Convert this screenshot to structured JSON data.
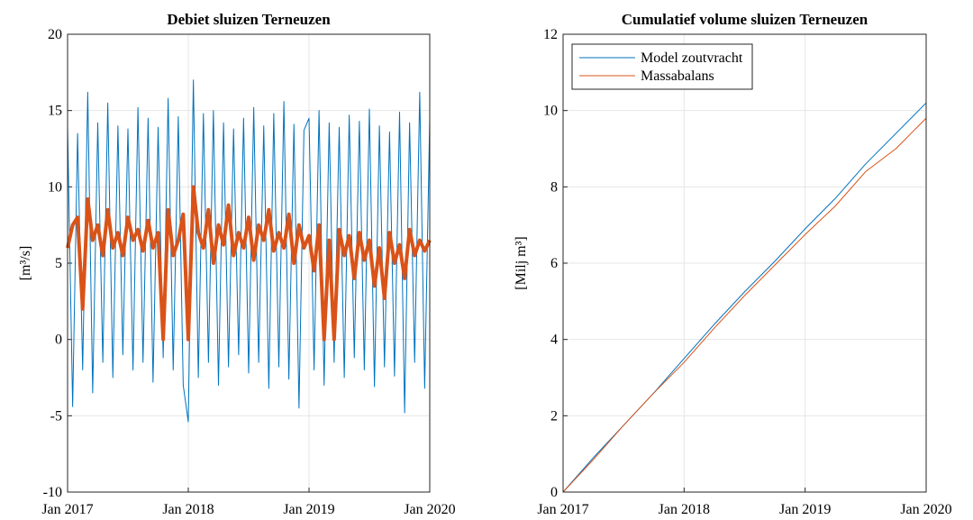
{
  "chart_data": [
    {
      "type": "line",
      "title": "Debiet sluizen Terneuzen",
      "ylabel": "[m³/s]",
      "xlim": [
        2017,
        2020
      ],
      "xticks": [
        {
          "value": 2017,
          "label": "Jan 2017"
        },
        {
          "value": 2018,
          "label": "Jan 2018"
        },
        {
          "value": 2019,
          "label": "Jan 2019"
        },
        {
          "value": 2020,
          "label": "Jan 2020"
        }
      ],
      "ylim": [
        -10,
        20
      ],
      "yticks": [
        -10,
        -5,
        0,
        5,
        10,
        15,
        20
      ],
      "grid": true,
      "x": [
        2017,
        2017.042,
        2017.083,
        2017.125,
        2017.167,
        2017.208,
        2017.25,
        2017.292,
        2017.333,
        2017.375,
        2017.417,
        2017.458,
        2017.5,
        2017.542,
        2017.583,
        2017.625,
        2017.667,
        2017.708,
        2017.75,
        2017.792,
        2017.833,
        2017.875,
        2017.917,
        2017.958,
        2018,
        2018.042,
        2018.083,
        2018.125,
        2018.167,
        2018.208,
        2018.25,
        2018.292,
        2018.333,
        2018.375,
        2018.417,
        2018.458,
        2018.5,
        2018.542,
        2018.583,
        2018.625,
        2018.667,
        2018.708,
        2018.75,
        2018.792,
        2018.833,
        2018.875,
        2018.917,
        2018.958,
        2019,
        2019.042,
        2019.083,
        2019.125,
        2019.167,
        2019.208,
        2019.25,
        2019.292,
        2019.333,
        2019.375,
        2019.417,
        2019.458,
        2019.5,
        2019.542,
        2019.583,
        2019.625,
        2019.667,
        2019.708,
        2019.75,
        2019.792,
        2019.833,
        2019.875,
        2019.917,
        2019.958,
        2020
      ],
      "series": [
        {
          "color": "#0072bd",
          "width": 1,
          "values": [
            14,
            -4.4,
            13.5,
            -2,
            16.2,
            -3.5,
            14.2,
            -1.5,
            15.5,
            -2.5,
            14,
            -1,
            13.8,
            -2,
            15.2,
            -1.5,
            14.5,
            -2.8,
            13.9,
            -1.2,
            15.8,
            -2,
            14.6,
            -3,
            -5.4,
            17,
            -2.5,
            14.8,
            -1.5,
            15,
            -3,
            14.2,
            -1.8,
            13.8,
            -1,
            14.5,
            -2.2,
            15.2,
            -1.5,
            14,
            -3.2,
            14.8,
            -1.8,
            15.6,
            -2.6,
            14.1,
            -4.5,
            13.7,
            14.5,
            -2,
            15,
            -3,
            14.2,
            -1.5,
            13.9,
            -2.5,
            14.7,
            -1.2,
            14.3,
            -2,
            15.1,
            -3.1,
            14,
            -1.8,
            13.6,
            -2.4,
            14.9,
            -4.8,
            14.2,
            -1.5,
            16.2,
            -3.2,
            14.5
          ]
        },
        {
          "color": "#d95319",
          "width": 4,
          "values": [
            6,
            7.5,
            8,
            2,
            9.2,
            6.5,
            7.5,
            5.5,
            8.5,
            6,
            7,
            5.5,
            8,
            6.5,
            7.2,
            5.8,
            7.8,
            6,
            7,
            0,
            8.5,
            5.5,
            6.5,
            8.2,
            0,
            10,
            7,
            6,
            8.5,
            5,
            7.5,
            6.2,
            8.8,
            5.5,
            7,
            6,
            8,
            5.2,
            7.5,
            6.5,
            8.5,
            5.8,
            7,
            6,
            8.2,
            5,
            7.5,
            6,
            6.8,
            4.5,
            7.5,
            0,
            6.5,
            0,
            7.2,
            5.5,
            6.8,
            4,
            7,
            5.2,
            6.5,
            3.5,
            6,
            2.7,
            7,
            5,
            6.2,
            4,
            7.2,
            5.5,
            6.5,
            5.8,
            6.5
          ]
        }
      ]
    },
    {
      "type": "line",
      "title": "Cumulatief volume sluizen Terneuzen",
      "ylabel": "[Milj m³]",
      "xlim": [
        2017,
        2020
      ],
      "xticks": [
        {
          "value": 2017,
          "label": "Jan 2017"
        },
        {
          "value": 2018,
          "label": "Jan 2018"
        },
        {
          "value": 2019,
          "label": "Jan 2019"
        },
        {
          "value": 2020,
          "label": "Jan 2020"
        }
      ],
      "ylim": [
        0,
        12
      ],
      "yticks": [
        0,
        2,
        4,
        6,
        8,
        10,
        12
      ],
      "grid": true,
      "legend": "top-left",
      "x": [
        2017,
        2017.25,
        2017.5,
        2017.75,
        2018,
        2018.25,
        2018.5,
        2018.75,
        2019,
        2019.25,
        2019.5,
        2019.75,
        2020
      ],
      "series": [
        {
          "name": "Model zoutvracht",
          "color": "#0072bd",
          "width": 1,
          "values": [
            0,
            0.9,
            1.75,
            2.6,
            3.5,
            4.4,
            5.25,
            6.05,
            6.9,
            7.7,
            8.6,
            9.4,
            10.2
          ]
        },
        {
          "name": "Massabalans",
          "color": "#d95319",
          "width": 1,
          "values": [
            0,
            0.85,
            1.75,
            2.6,
            3.4,
            4.3,
            5.15,
            5.95,
            6.75,
            7.5,
            8.4,
            9,
            9.8
          ]
        }
      ]
    }
  ]
}
